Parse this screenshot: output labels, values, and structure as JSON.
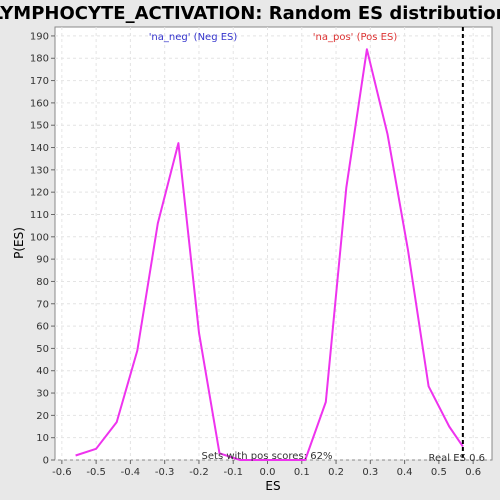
{
  "chart_data": {
    "type": "line",
    "title": "LYMPHOCYTE_ACTIVATION: Random ES distribution",
    "xlabel": "ES",
    "ylabel": "P(ES)",
    "xlim": [
      -0.62,
      0.655
    ],
    "ylim": [
      0,
      194
    ],
    "xticks": [
      -0.6,
      -0.5,
      -0.4,
      -0.3,
      -0.2,
      -0.1,
      0.0,
      0.1,
      0.2,
      0.3,
      0.4,
      0.5,
      0.6
    ],
    "xtick_labels": [
      "-0.6",
      "-0.5",
      "-0.4",
      "-0.3",
      "-0.2",
      "-0.1",
      "0.0",
      "0.1",
      "0.2",
      "0.3",
      "0.4",
      "0.5",
      "0.6"
    ],
    "yticks": [
      0,
      10,
      20,
      30,
      40,
      50,
      60,
      70,
      80,
      90,
      100,
      110,
      120,
      130,
      140,
      150,
      160,
      170,
      180,
      190
    ],
    "ytick_labels": [
      "0",
      "10",
      "20",
      "30",
      "40",
      "50",
      "60",
      "70",
      "80",
      "90",
      "100",
      "110",
      "120",
      "130",
      "140",
      "150",
      "160",
      "170",
      "180",
      "190"
    ],
    "grid": true,
    "series": [
      {
        "color": "#ee33ee",
        "x": [
          -0.56,
          -0.5,
          -0.44,
          -0.38,
          -0.32,
          -0.26,
          -0.2,
          -0.14,
          -0.08,
          -0.02,
          0.04,
          0.11,
          0.17,
          0.23,
          0.29,
          0.35,
          0.41,
          0.47,
          0.53,
          0.57
        ],
        "y": [
          2,
          5,
          17,
          49,
          106,
          142,
          57,
          3,
          0,
          0,
          0,
          0,
          26,
          122,
          184,
          146,
          94,
          33,
          15,
          6
        ]
      }
    ],
    "vline": {
      "x": 0.57,
      "style": "dashed",
      "color": "#000000"
    },
    "annotations": {
      "neg_label": "'na_neg' (Neg ES)",
      "neg_color": "#3333cc",
      "pos_label": "'na_pos' (Pos ES)",
      "pos_color": "#dd3333",
      "sets_label": "Sets with pos scores: 62%",
      "real_es_label": "Real ES 0.6"
    }
  }
}
